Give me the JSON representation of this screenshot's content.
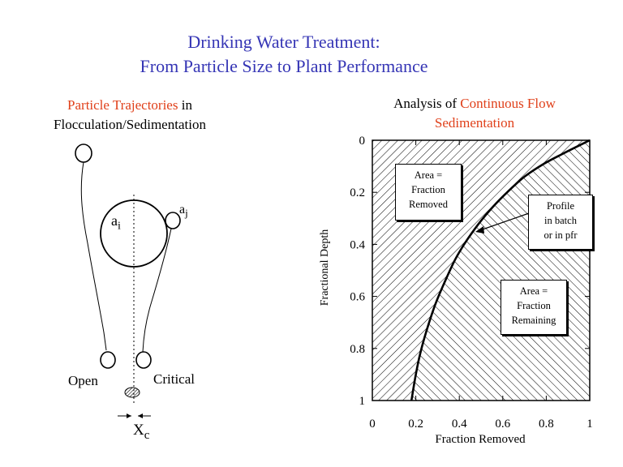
{
  "title": {
    "line1": "Drinking Water Treatment:",
    "line2": "From Particle Size to Plant Performance"
  },
  "left_panel": {
    "heading_red": "Particle Trajectories",
    "heading_rest": " in",
    "heading_line2": "Flocculation/Sedimentation",
    "label_ai_main": "a",
    "label_ai_sub": "i",
    "label_aj_main": "a",
    "label_aj_sub": "j",
    "label_open": "Open",
    "label_critical": "Critical",
    "label_xc_main": "X",
    "label_xc_sub": "c"
  },
  "right_panel": {
    "heading_black": "Analysis of ",
    "heading_red1": "Continuous Flow",
    "heading_red2": "Sedimentation",
    "box_removed": [
      "Area =",
      "Fraction",
      "Removed"
    ],
    "box_profile": [
      "Profile",
      "in batch",
      "or in pfr"
    ],
    "box_remaining": [
      "Area =",
      "Fraction",
      "Remaining"
    ]
  },
  "chart_data": {
    "type": "area",
    "xlabel": "Fraction Removed",
    "ylabel": "Fractional Depth",
    "xlim": [
      0,
      1
    ],
    "ylim": [
      0,
      1
    ],
    "y_inverted": true,
    "x_ticks": [
      "0",
      "0.2",
      "0.4",
      "0.6",
      "0.8",
      "1"
    ],
    "y_ticks": [
      "0",
      "0.2",
      "0.4",
      "0.6",
      "0.8",
      "1"
    ],
    "series": [
      {
        "x": [
          0.18,
          0.2,
          0.22,
          0.25,
          0.29,
          0.33,
          0.38,
          0.43,
          0.49,
          0.55,
          0.62,
          0.7,
          0.79,
          0.88,
          1.0
        ],
        "y": [
          1.0,
          0.9,
          0.82,
          0.73,
          0.63,
          0.55,
          0.46,
          0.39,
          0.32,
          0.26,
          0.2,
          0.14,
          0.09,
          0.05,
          0.0
        ]
      }
    ]
  }
}
